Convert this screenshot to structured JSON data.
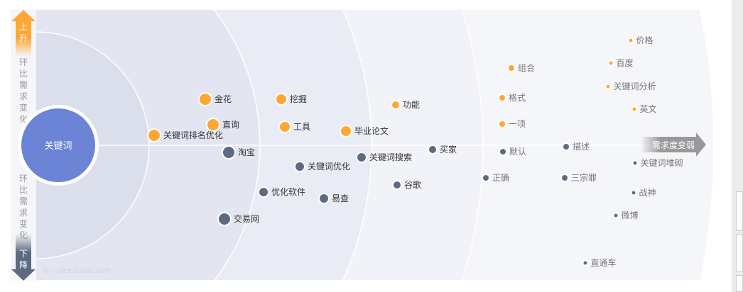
{
  "chart_data": {
    "type": "radial-scatter",
    "center_label": "关键词",
    "up_label": "上升",
    "down_label": "下降",
    "axis_label_top": "环比需求变化",
    "axis_label_bottom": "环比需求变化",
    "strength_label": "需求度变弱",
    "watermark": "© index.baidu.com",
    "colors": {
      "up": "#ffa733",
      "down": "#5d6a82",
      "center": "#6b84d6"
    },
    "points": [
      {
        "label": "金花",
        "trend": "up"
      },
      {
        "label": "直询",
        "trend": "up"
      },
      {
        "label": "关键词排名优化",
        "trend": "up"
      },
      {
        "label": "淘宝",
        "trend": "down"
      },
      {
        "label": "交易网",
        "trend": "down"
      },
      {
        "label": "挖掘",
        "trend": "up"
      },
      {
        "label": "工具",
        "trend": "up"
      },
      {
        "label": "毕业论文",
        "trend": "up"
      },
      {
        "label": "关键词优化",
        "trend": "down"
      },
      {
        "label": "优化软件",
        "trend": "down"
      },
      {
        "label": "易查",
        "trend": "down"
      },
      {
        "label": "关键词搜索",
        "trend": "down"
      },
      {
        "label": "功能",
        "trend": "up"
      },
      {
        "label": "买家",
        "trend": "down"
      },
      {
        "label": "谷歌",
        "trend": "down"
      },
      {
        "label": "组合",
        "trend": "up"
      },
      {
        "label": "格式",
        "trend": "up"
      },
      {
        "label": "一项",
        "trend": "up"
      },
      {
        "label": "默认",
        "trend": "down"
      },
      {
        "label": "正确",
        "trend": "down"
      },
      {
        "label": "描述",
        "trend": "down"
      },
      {
        "label": "三宗罪",
        "trend": "down"
      },
      {
        "label": "价格",
        "trend": "up"
      },
      {
        "label": "百度",
        "trend": "up"
      },
      {
        "label": "关键词分析",
        "trend": "up"
      },
      {
        "label": "英文",
        "trend": "up"
      },
      {
        "label": "关键词堆砌",
        "trend": "down"
      },
      {
        "label": "战神",
        "trend": "down"
      },
      {
        "label": "微博",
        "trend": "down"
      },
      {
        "label": "直通车",
        "trend": "down"
      }
    ]
  }
}
